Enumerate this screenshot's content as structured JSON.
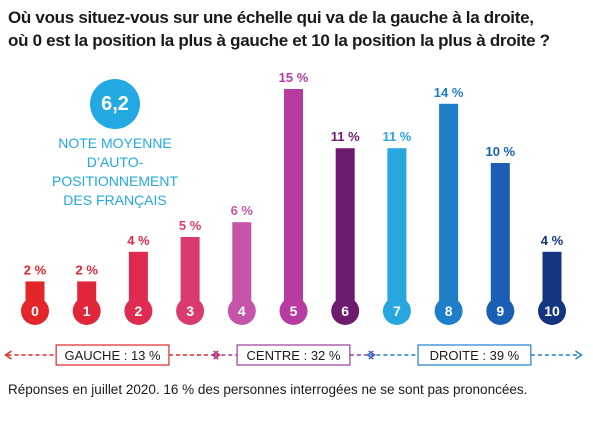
{
  "chart_data": {
    "type": "bar",
    "title": "Où vous situez-vous sur une échelle qui va de la gauche à la droite, où 0 est la position la plus à gauche et 10 la position la plus à droite ?",
    "title_lines": [
      "Où vous situez-vous sur une échelle qui va de la gauche à la droite,",
      "où 0 est la position la plus à gauche et 10 la position la plus à droite ?"
    ],
    "categories": [
      "0",
      "1",
      "2",
      "3",
      "4",
      "5",
      "6",
      "7",
      "8",
      "9",
      "10"
    ],
    "values": [
      2,
      2,
      4,
      5,
      6,
      15,
      11,
      11,
      14,
      10,
      4
    ],
    "value_labels": [
      "2 %",
      "2 %",
      "4 %",
      "5 %",
      "6 %",
      "15 %",
      "11 %",
      "11 %",
      "14 %",
      "10 %",
      "4 %"
    ],
    "colors": [
      "#e3262a",
      "#e1263a",
      "#df2b50",
      "#db3a6e",
      "#c455a8",
      "#b83ba1",
      "#6e1a6e",
      "#27a6e0",
      "#1e7ec8",
      "#1a5fb4",
      "#14357f"
    ],
    "label_colors": [
      "#e3262a",
      "#e1263a",
      "#df2b50",
      "#db3a6e",
      "#c455a8",
      "#b83ba1",
      "#6e1a6e",
      "#27a6e0",
      "#1e7ec8",
      "#1a5fb4",
      "#14357f"
    ],
    "ylim": [
      0,
      15
    ],
    "groups": [
      {
        "label": "GAUCHE : 13 %",
        "color": "#e3262a",
        "from": 0,
        "to": 3
      },
      {
        "label": "CENTRE : 32 %",
        "color": "#9b3aa0",
        "from": 4,
        "to": 6
      },
      {
        "label": "DROITE : 39 %",
        "color": "#1e7ec8",
        "from": 7,
        "to": 10
      }
    ],
    "average": {
      "value": "6,2",
      "label_lines": [
        "NOTE MOYENNE",
        "D’AUTO-POSITIONNEMENT",
        "DES FRANÇAIS"
      ],
      "color": "#23a9e1"
    },
    "footnote": "Réponses en juillet 2020. 16 % des personnes interrogées ne se sont pas prononcées."
  }
}
